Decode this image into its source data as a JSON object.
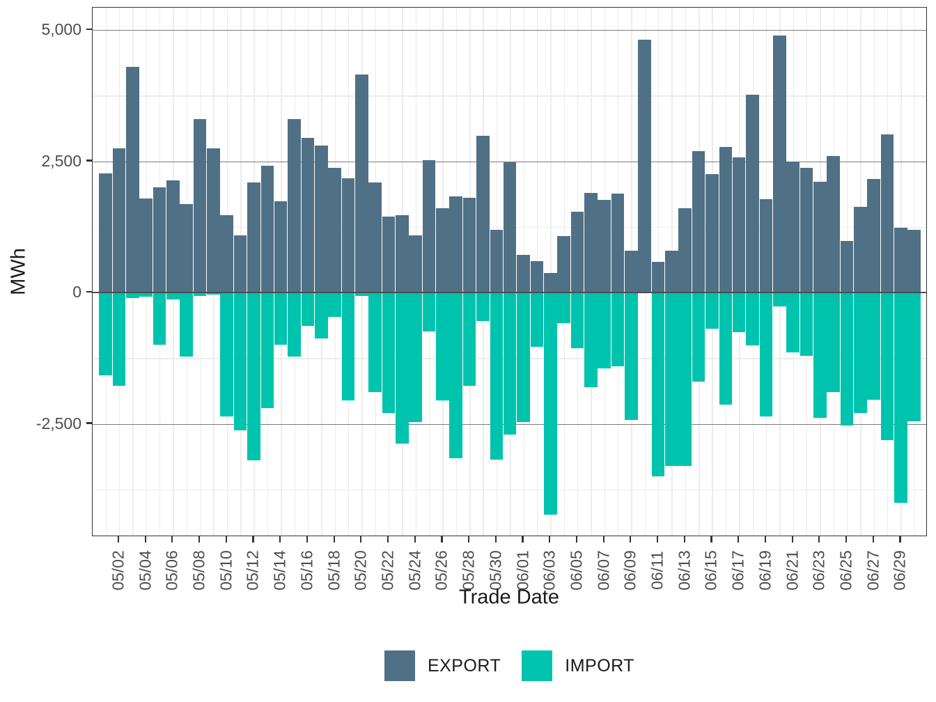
{
  "chart_data": {
    "type": "bar",
    "title": "",
    "xlabel": "Trade Date",
    "ylabel": "MWh",
    "legend_position": "bottom",
    "grid": true,
    "ylim": [
      -4660,
      5430
    ],
    "categories": [
      "05/01",
      "05/02",
      "05/03",
      "05/04",
      "05/05",
      "05/06",
      "05/07",
      "05/08",
      "05/09",
      "05/10",
      "05/11",
      "05/12",
      "05/13",
      "05/14",
      "05/15",
      "05/16",
      "05/17",
      "05/18",
      "05/19",
      "05/20",
      "05/21",
      "05/22",
      "05/23",
      "05/24",
      "05/25",
      "05/26",
      "05/27",
      "05/28",
      "05/29",
      "05/30",
      "05/31",
      "06/01",
      "06/02",
      "06/03",
      "06/04",
      "06/05",
      "06/06",
      "06/07",
      "06/08",
      "06/09",
      "06/10",
      "06/11",
      "06/12",
      "06/13",
      "06/14",
      "06/15",
      "06/16",
      "06/17",
      "06/18",
      "06/19",
      "06/20",
      "06/21",
      "06/22",
      "06/23",
      "06/24",
      "06/25",
      "06/26",
      "06/27",
      "06/28",
      "06/29",
      "06/30"
    ],
    "x_tick_labels": [
      "05/02",
      "05/04",
      "05/06",
      "05/08",
      "05/10",
      "05/12",
      "05/14",
      "05/16",
      "05/18",
      "05/20",
      "05/22",
      "05/24",
      "05/26",
      "05/28",
      "05/30",
      "06/01",
      "06/03",
      "06/05",
      "06/07",
      "06/09",
      "06/11",
      "06/13",
      "06/15",
      "06/17",
      "06/19",
      "06/21",
      "06/23",
      "06/25",
      "06/27",
      "06/29"
    ],
    "y_ticks": [
      {
        "value": 5000,
        "label": "5,000"
      },
      {
        "value": 2500,
        "label": "2,500"
      },
      {
        "value": 0,
        "label": "0"
      },
      {
        "value": -2500,
        "label": "-2,500"
      }
    ],
    "y_minor_ticks": [
      3750,
      1250,
      -1250,
      -3750
    ],
    "series": [
      {
        "name": "EXPORT",
        "color": "#507085",
        "values": [
          2270,
          2750,
          4300,
          1790,
          2000,
          2140,
          1690,
          3300,
          2750,
          1470,
          1090,
          2100,
          2410,
          1740,
          3300,
          2950,
          2800,
          2380,
          2170,
          4150,
          2100,
          1440,
          1470,
          1090,
          2520,
          1610,
          1830,
          1810,
          2990,
          1190,
          2480,
          710,
          600,
          370,
          1070,
          1540,
          1890,
          1770,
          1880,
          800,
          4820,
          580,
          790,
          1600,
          2690,
          2250,
          2770,
          2570,
          3760,
          1780,
          4900,
          2490,
          2370,
          2110,
          2600,
          980,
          1630,
          2160,
          3010,
          1240,
          1200
        ]
      },
      {
        "name": "IMPORT",
        "color": "#00c3ad",
        "values": [
          -1580,
          -1780,
          -110,
          -80,
          -990,
          -130,
          -1220,
          -60,
          -40,
          -2360,
          -2630,
          -3200,
          -2200,
          -1000,
          -1220,
          -640,
          -870,
          -470,
          -2050,
          -60,
          -1890,
          -2300,
          -2880,
          -2470,
          -740,
          -2050,
          -3150,
          -1780,
          -550,
          -3180,
          -2700,
          -2470,
          -1030,
          -4230,
          -580,
          -1060,
          -1800,
          -1440,
          -1410,
          -2430,
          0,
          -3500,
          -3300,
          -3300,
          -1700,
          -690,
          -2140,
          -750,
          -1010,
          -2360,
          -270,
          -1140,
          -1210,
          -2390,
          -1900,
          -2530,
          -2300,
          -2040,
          -2810,
          -4000,
          -2450
        ]
      }
    ]
  },
  "colors": {
    "export": "#507085",
    "import": "#00c3ad",
    "grid_major": "#7d7d7d",
    "grid_minor": "#ececec",
    "axis_text": "#4d4d4d",
    "title_text": "#1a1a1a",
    "panel_border": "#333333",
    "zero_line": "#4d4d4d"
  }
}
